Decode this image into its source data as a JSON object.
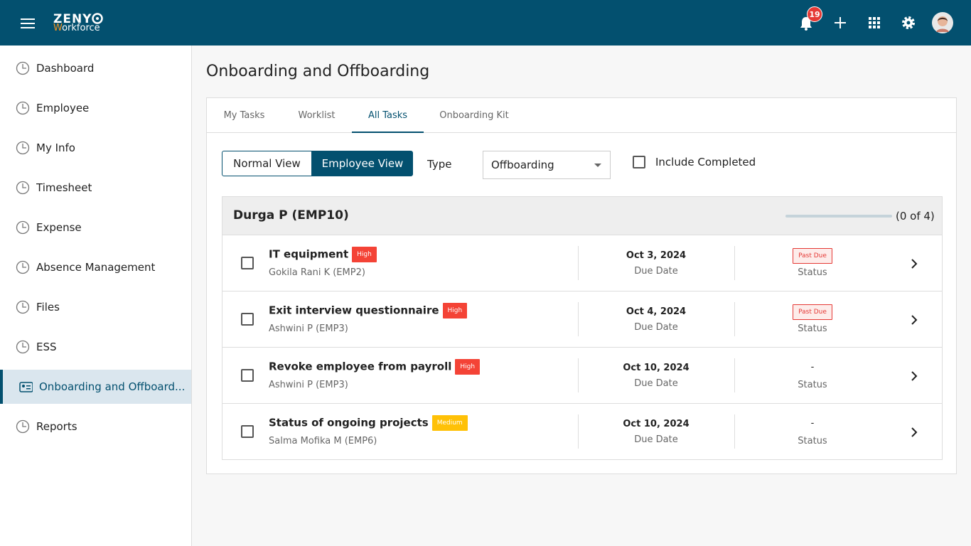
{
  "header": {
    "logo_brand": "ZENY",
    "logo_product": "Workforce",
    "notification_count": "19"
  },
  "sidebar": {
    "items": [
      "Dashboard",
      "Employee",
      "My Info",
      "Timesheet",
      "Expense",
      "Absence Management",
      "Files",
      "ESS",
      "Onboarding and Offboard...",
      "Reports"
    ]
  },
  "page": {
    "title": "Onboarding and Offboarding",
    "tabs": [
      "My Tasks",
      "Worklist",
      "All Tasks",
      "Onboarding Kit"
    ],
    "view_toggle": [
      "Normal View",
      "Employee View"
    ],
    "type_label": "Type",
    "type_value": "Offboarding",
    "include_completed": "Include Completed",
    "group": {
      "name": "Durga P (EMP10)",
      "progress": "(0 of 4)",
      "tasks": [
        {
          "title": "IT equipment",
          "priority": "High",
          "priority_color": "#f44336",
          "assignee": "Gokila Rani K (EMP2)",
          "due": "Oct 3, 2024",
          "due_label": "Due Date",
          "status": "Past Due",
          "status_label": "Status"
        },
        {
          "title": "Exit interview questionnaire",
          "priority": "High",
          "priority_color": "#f44336",
          "assignee": "Ashwini P (EMP3)",
          "due": "Oct 4, 2024",
          "due_label": "Due Date",
          "status": "Past Due",
          "status_label": "Status"
        },
        {
          "title": "Revoke employee from payroll",
          "priority": "High",
          "priority_color": "#f44336",
          "assignee": "Ashwini P (EMP3)",
          "due": "Oct 10, 2024",
          "due_label": "Due Date",
          "status": "-",
          "status_label": "Status"
        },
        {
          "title": "Status of ongoing projects",
          "priority": "Medium",
          "priority_color": "#ffc107",
          "assignee": "Salma Mofika M (EMP6)",
          "due": "Oct 10, 2024",
          "due_label": "Due Date",
          "status": "-",
          "status_label": "Status"
        }
      ]
    }
  }
}
